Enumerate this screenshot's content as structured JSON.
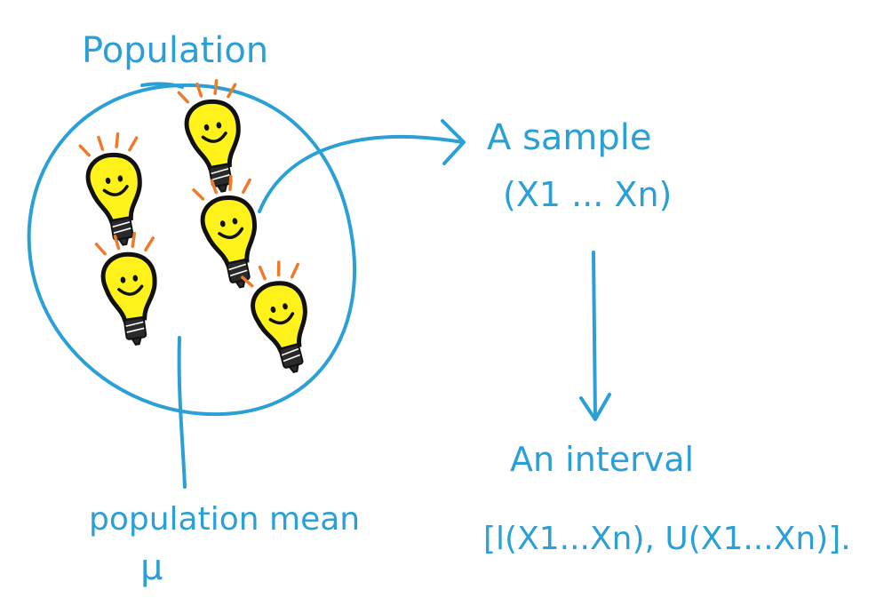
{
  "labels": {
    "population": "Population",
    "sample": "A sample",
    "sample_vars": "(X1 ... Xn)",
    "interval": "An interval",
    "interval_expr": "[l(X1...Xn), U(X1...Xn)].",
    "population_mean": "population mean",
    "mu": "μ"
  },
  "icons": [
    "lightbulb-icon",
    "lightbulb-icon",
    "lightbulb-icon",
    "lightbulb-icon",
    "lightbulb-icon"
  ],
  "colors": {
    "ink": "#2ba0d6",
    "bulb": "#fff21a",
    "rays": "#f07a2a",
    "outline": "#111111"
  }
}
